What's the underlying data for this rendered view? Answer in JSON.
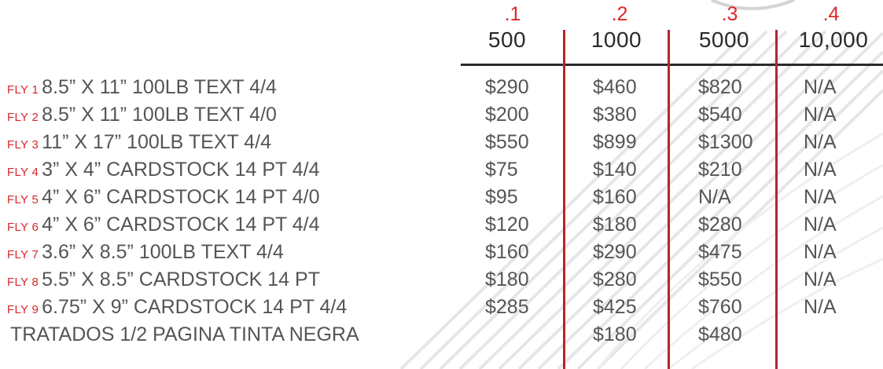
{
  "columns": [
    {
      "code": ".1",
      "qty": "500"
    },
    {
      "code": ".2",
      "qty": "1000"
    },
    {
      "code": ".3",
      "qty": "5000"
    },
    {
      "code": ".4",
      "qty": "10,000"
    }
  ],
  "rows": [
    {
      "code": "FLY 1",
      "desc": "8.5” X 11”  100LB TEXT 4/4",
      "prices": [
        "$290",
        "$460",
        "$820",
        "N/A"
      ]
    },
    {
      "code": "FLY 2",
      "desc": "8.5” X 11”  100LB TEXT 4/0",
      "prices": [
        "$200",
        "$380",
        "$540",
        "N/A"
      ]
    },
    {
      "code": "FLY 3",
      "desc": "11” X 17”  100LB TEXT 4/4",
      "prices": [
        "$550",
        "$899",
        "$1300",
        "N/A"
      ]
    },
    {
      "code": "FLY 4",
      "desc": "3” X 4” CARDSTOCK 14 PT 4/4",
      "prices": [
        "$75",
        "$140",
        "$210",
        "N/A"
      ]
    },
    {
      "code": "FLY 5",
      "desc": "4” X 6” CARDSTOCK 14 PT 4/0",
      "prices": [
        "$95",
        "$160",
        "N/A",
        "N/A"
      ]
    },
    {
      "code": "FLY 6",
      "desc": "4” X 6” CARDSTOCK 14 PT 4/4",
      "prices": [
        "$120",
        "$180",
        "$280",
        "N/A"
      ]
    },
    {
      "code": "FLY 7",
      "desc": "3.6” X 8.5”  100LB TEXT 4/4",
      "prices": [
        "$160",
        "$290",
        "$475",
        "N/A"
      ]
    },
    {
      "code": "FLY 8",
      "desc": "5.5” X 8.5” CARDSTOCK 14 PT",
      "prices": [
        "$180",
        "$280",
        "$550",
        "N/A"
      ]
    },
    {
      "code": "FLY 9",
      "desc": "6.75” X 9” CARDSTOCK 14 PT 4/4",
      "prices": [
        "$285",
        "$425",
        "$760",
        "N/A"
      ]
    },
    {
      "code": "",
      "desc": "TRATADOS 1/2 PAGINA TINTA NEGRA",
      "prices": [
        "",
        "$180",
        "$480",
        ""
      ]
    }
  ],
  "colors": {
    "accent_red": "#e0262a",
    "rule_red": "#b5262b",
    "header_text": "#2a2a2a",
    "body_text": "#555555"
  }
}
